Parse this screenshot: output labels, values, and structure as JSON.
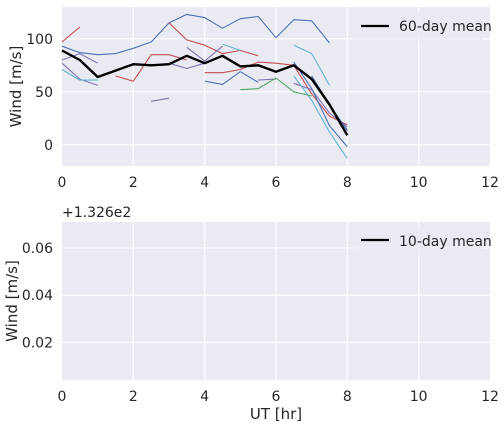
{
  "chart_data": [
    {
      "type": "line",
      "ylabel": "Wind [m/s]",
      "xlabel": "",
      "xlim": [
        0,
        12
      ],
      "ylim": [
        -20,
        130
      ],
      "xticks": [
        0,
        2,
        4,
        6,
        8,
        10,
        12
      ],
      "yticks": [
        0,
        50,
        100
      ],
      "grid": true,
      "legend": {
        "position": "top-right",
        "entries": [
          "60-day mean"
        ]
      },
      "mean_series": {
        "name": "60-day mean",
        "color": "#000000",
        "points": [
          [
            0,
            89
          ],
          [
            0.5,
            80
          ],
          [
            1,
            64
          ],
          [
            1.5,
            70
          ],
          [
            2,
            76
          ],
          [
            2.5,
            75
          ],
          [
            3,
            76
          ],
          [
            3.5,
            84
          ],
          [
            4,
            77
          ],
          [
            4.5,
            84
          ],
          [
            5,
            74
          ],
          [
            5.5,
            75
          ],
          [
            6,
            69
          ],
          [
            6.5,
            75
          ],
          [
            7,
            62
          ],
          [
            7.5,
            38
          ],
          [
            8,
            9
          ]
        ]
      },
      "daily_series": [
        {
          "color": "#4C72B0",
          "points": [
            [
              0,
              93
            ],
            [
              0.5,
              87
            ],
            [
              1,
              85
            ],
            [
              1.5,
              86
            ],
            [
              2,
              91
            ],
            [
              2.5,
              97
            ],
            [
              3,
              115
            ],
            [
              3.5,
              123
            ],
            [
              4,
              120
            ],
            [
              4.5,
              110
            ],
            [
              5,
              119
            ],
            [
              5.5,
              121
            ],
            [
              6,
              101
            ],
            [
              6.5,
              118
            ],
            [
              7,
              117
            ],
            [
              7.5,
              96
            ]
          ]
        },
        {
          "color": "#C44E52",
          "points": [
            [
              0,
              97
            ],
            [
              0.5,
              111
            ]
          ]
        },
        {
          "color": "#C44E52",
          "points": [
            [
              1.5,
              65
            ],
            [
              2,
              60
            ],
            [
              2.5,
              85
            ],
            [
              3,
              85
            ],
            [
              3.5,
              80
            ]
          ]
        },
        {
          "color": "#C44E52",
          "points": [
            [
              3,
              115
            ],
            [
              3.5,
              99
            ],
            [
              4,
              94
            ],
            [
              4.5,
              86
            ],
            [
              5,
              89
            ],
            [
              5.5,
              84
            ]
          ]
        },
        {
          "color": "#C44E52",
          "points": [
            [
              4,
              68
            ],
            [
              4.5,
              68
            ],
            [
              5,
              71
            ],
            [
              5.5,
              78
            ],
            [
              6,
              77
            ],
            [
              6.5,
              75
            ],
            [
              7,
              48
            ],
            [
              7.5,
              27
            ],
            [
              8,
              19
            ]
          ]
        },
        {
          "color": "#8172B2",
          "points": [
            [
              0,
              77
            ],
            [
              0.5,
              62
            ],
            [
              1,
              56
            ]
          ]
        },
        {
          "color": "#8172B2",
          "points": [
            [
              0,
              80
            ],
            [
              0.5,
              86
            ],
            [
              1,
              77
            ]
          ]
        },
        {
          "color": "#8172B2",
          "points": [
            [
              2.5,
              41
            ],
            [
              3,
              44
            ]
          ]
        },
        {
          "color": "#8172B2",
          "points": [
            [
              3.5,
              92
            ],
            [
              4,
              79
            ],
            [
              4.5,
              93
            ]
          ]
        },
        {
          "color": "#8172B2",
          "points": [
            [
              3,
              77
            ],
            [
              3.5,
              72
            ],
            [
              4,
              77
            ]
          ]
        },
        {
          "color": "#8172B2",
          "points": [
            [
              5.5,
              61
            ],
            [
              6,
              62
            ]
          ]
        },
        {
          "color": "#8172B2",
          "points": [
            [
              6.5,
              58
            ],
            [
              7,
              52
            ],
            [
              7.5,
              30
            ],
            [
              8,
              17
            ]
          ]
        },
        {
          "color": "#64B5CD",
          "points": [
            [
              0,
              71
            ],
            [
              0.5,
              61
            ],
            [
              1,
              61
            ]
          ]
        },
        {
          "color": "#64B5CD",
          "points": [
            [
              4.5,
              95
            ],
            [
              5,
              89
            ]
          ]
        },
        {
          "color": "#64B5CD",
          "points": [
            [
              6.5,
              94
            ],
            [
              7,
              86
            ],
            [
              7.5,
              56
            ]
          ]
        },
        {
          "color": "#64B5CD",
          "points": [
            [
              6.5,
              65
            ],
            [
              7,
              42
            ],
            [
              7.5,
              12
            ],
            [
              8,
              -13
            ]
          ]
        },
        {
          "color": "#55A868",
          "points": [
            [
              5,
              52
            ],
            [
              5.5,
              53
            ],
            [
              6,
              63
            ],
            [
              6.5,
              50
            ],
            [
              7,
              46
            ]
          ]
        },
        {
          "color": "#4C72B0",
          "points": [
            [
              4,
              60
            ],
            [
              4.5,
              57
            ],
            [
              5,
              69
            ],
            [
              5.5,
              59
            ]
          ]
        },
        {
          "color": "#4C72B0",
          "points": [
            [
              6.5,
              78
            ],
            [
              7,
              53
            ],
            [
              7.5,
              18
            ],
            [
              8,
              -2
            ]
          ]
        },
        {
          "color": "#4C72B0",
          "points": [
            [
              7,
              65
            ],
            [
              7.5,
              38
            ],
            [
              8,
              13
            ]
          ]
        },
        {
          "color": "#4C72B0",
          "points": [
            [
              7.5,
              37
            ],
            [
              8,
              14
            ]
          ]
        }
      ]
    },
    {
      "type": "line",
      "ylabel": "Wind [m/s]",
      "xlabel": "UT [hr]",
      "offset_text": "+1.326e2",
      "xlim": [
        0,
        12
      ],
      "ylim": [
        0.004,
        0.071
      ],
      "xticks": [
        0,
        2,
        4,
        6,
        8,
        10,
        12
      ],
      "yticks": [
        0.02,
        0.04,
        0.06
      ],
      "grid": true,
      "legend": {
        "position": "top-right",
        "entries": [
          "10-day mean"
        ]
      },
      "mean_series": {
        "name": "10-day mean",
        "color": "#000000",
        "points": []
      },
      "daily_series": []
    }
  ],
  "style": {
    "axes_bg": "#EAEAF2",
    "grid_color": "#ffffff",
    "text_color": "#262626"
  }
}
